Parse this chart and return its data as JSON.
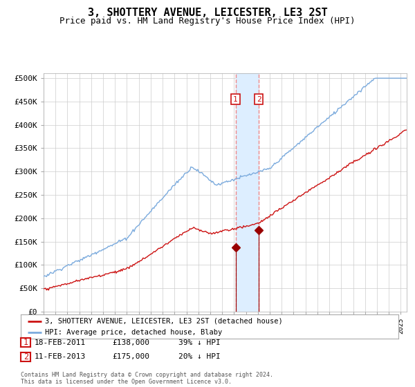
{
  "title": "3, SHOTTERY AVENUE, LEICESTER, LE3 2ST",
  "subtitle": "Price paid vs. HM Land Registry's House Price Index (HPI)",
  "title_fontsize": 11,
  "subtitle_fontsize": 9,
  "ylabel_ticks": [
    "£0",
    "£50K",
    "£100K",
    "£150K",
    "£200K",
    "£250K",
    "£300K",
    "£350K",
    "£400K",
    "£450K",
    "£500K"
  ],
  "ytick_values": [
    0,
    50000,
    100000,
    150000,
    200000,
    250000,
    300000,
    350000,
    400000,
    450000,
    500000
  ],
  "ylim": [
    0,
    510000
  ],
  "hpi_color": "#7aaadd",
  "price_color": "#cc1111",
  "transaction1_date_num": 2011.125,
  "transaction1_value": 138000,
  "transaction2_date_num": 2013.083,
  "transaction2_value": 175000,
  "marker_color": "#990000",
  "vline_color": "#ee8888",
  "vband_color": "#ddeeff",
  "legend1_label": "3, SHOTTERY AVENUE, LEICESTER, LE3 2ST (detached house)",
  "legend2_label": "HPI: Average price, detached house, Blaby",
  "table_row1": [
    "1",
    "18-FEB-2011",
    "£138,000",
    "39% ↓ HPI"
  ],
  "table_row2": [
    "2",
    "11-FEB-2013",
    "£175,000",
    "20% ↓ HPI"
  ],
  "footnote": "Contains HM Land Registry data © Crown copyright and database right 2024.\nThis data is licensed under the Open Government Licence v3.0.",
  "background_color": "#ffffff",
  "grid_color": "#cccccc",
  "box_color": "#cc1111",
  "xlim_start": 1995.0,
  "xlim_end": 2025.5
}
